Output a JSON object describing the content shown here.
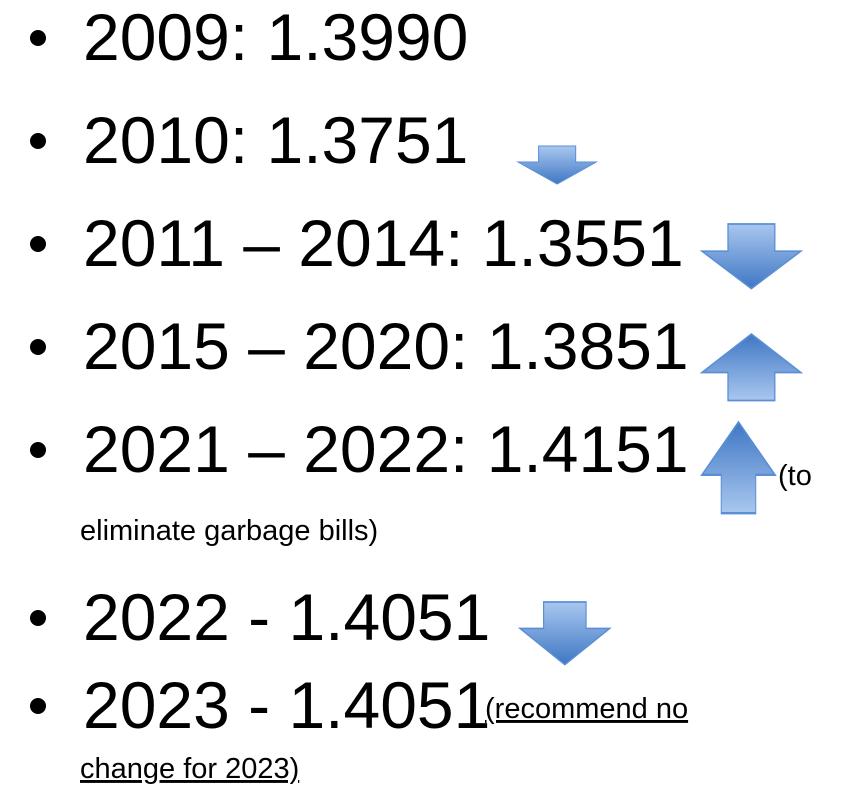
{
  "items": [
    {
      "text": "2009: 1.3990"
    },
    {
      "text": "2010: 1.3751"
    },
    {
      "text": "2011 – 2014: 1.3551"
    },
    {
      "text": "2015 – 2020: 1.3851"
    },
    {
      "text": "2021 – 2022: 1.4151",
      "note_lines": [
        "(to",
        "eliminate garbage bills)"
      ]
    },
    {
      "text": "2022 - 1.4051"
    },
    {
      "text": "2023 - 1.4051",
      "note_lines": [
        "(recommend no",
        "change for 2023)"
      ]
    }
  ]
}
